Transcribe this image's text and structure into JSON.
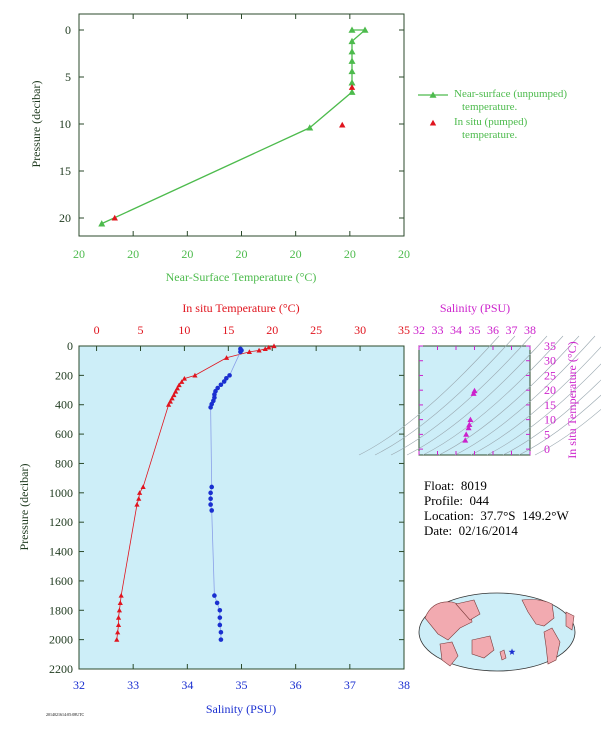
{
  "colors": {
    "green": "#4dbb4d",
    "red": "#e0141e",
    "blue": "#1a2fd0",
    "magenta": "#cc22cc",
    "axis_dark": "#1f3a1f",
    "plot_bg": "#cdeef8",
    "land": "#f2aab0",
    "ocean": "#cdeef8"
  },
  "info": {
    "float": "Float:  8019",
    "profile": "Profile:  044",
    "location": "Location:  37.7°S  149.2°W",
    "date": "Date:  02/16/2014"
  },
  "footer_code": "2014021614:05:08UTC",
  "map": {
    "marker_icon": "star-icon"
  },
  "chart_data": [
    {
      "type": "scatter",
      "xlabel": "Near-Surface Temperature (°C)",
      "ylabel": "Pressure (decibar)",
      "xticks": [
        "20",
        "20",
        "20",
        "20",
        "20",
        "20",
        "20"
      ],
      "yticks": [
        "0",
        "5",
        "10",
        "15",
        "20"
      ],
      "ylim": [
        0,
        22
      ],
      "legend_position": "right",
      "series": [
        {
          "name": "Near-surface (unpumped) temperature.",
          "marker": "triangle",
          "line": true,
          "points": [
            [
              20.84,
              0.0
            ],
            [
              20.88,
              0.0
            ],
            [
              20.84,
              1.2
            ],
            [
              20.84,
              2.3
            ],
            [
              20.84,
              3.3
            ],
            [
              20.84,
              4.4
            ],
            [
              20.84,
              5.6
            ],
            [
              20.84,
              6.6
            ],
            [
              20.71,
              10.4
            ],
            [
              20.07,
              20.6
            ]
          ]
        },
        {
          "name": "In situ (pumped) temperature.",
          "marker": "triangle",
          "line": false,
          "points": [
            [
              20.84,
              6.1
            ],
            [
              20.81,
              10.1
            ],
            [
              20.11,
              20.0
            ]
          ]
        }
      ]
    },
    {
      "type": "scatter",
      "title": "In situ Temperature (°C)",
      "xlabel": "Salinity (PSU)",
      "ylabel": "Pressure (decibar)",
      "temp_xlim": [
        -2,
        35
      ],
      "temp_xticks": [
        "0",
        "5",
        "10",
        "15",
        "20",
        "25",
        "30",
        "35"
      ],
      "sal_xlim": [
        32,
        38
      ],
      "sal_xticks": [
        "32",
        "33",
        "34",
        "35",
        "36",
        "37",
        "38"
      ],
      "ylim": [
        0,
        2200
      ],
      "yticks": [
        "0",
        "200",
        "400",
        "600",
        "800",
        "1000",
        "1200",
        "1400",
        "1600",
        "1800",
        "2000",
        "2200"
      ],
      "temperature": [
        [
          20.2,
          0
        ],
        [
          19.6,
          10
        ],
        [
          19.2,
          20
        ],
        [
          18.5,
          30
        ],
        [
          17.4,
          40
        ],
        [
          14.8,
          80
        ],
        [
          11.2,
          200
        ],
        [
          10.0,
          222
        ],
        [
          9.7,
          244
        ],
        [
          9.4,
          266
        ],
        [
          9.2,
          288
        ],
        [
          9.0,
          310
        ],
        [
          8.8,
          334
        ],
        [
          8.6,
          356
        ],
        [
          8.4,
          378
        ],
        [
          8.2,
          400
        ],
        [
          5.3,
          960
        ],
        [
          4.9,
          1000
        ],
        [
          4.8,
          1040
        ],
        [
          4.6,
          1080
        ],
        [
          2.8,
          1700
        ],
        [
          2.7,
          1750
        ],
        [
          2.6,
          1800
        ],
        [
          2.5,
          1850
        ],
        [
          2.5,
          1900
        ],
        [
          2.4,
          1950
        ],
        [
          2.3,
          2000
        ]
      ],
      "salinity": [
        [
          34.98,
          20
        ],
        [
          35.0,
          30
        ],
        [
          34.98,
          40
        ],
        [
          34.78,
          200
        ],
        [
          34.72,
          220
        ],
        [
          34.68,
          242
        ],
        [
          34.62,
          264
        ],
        [
          34.56,
          286
        ],
        [
          34.52,
          308
        ],
        [
          34.5,
          330
        ],
        [
          34.5,
          352
        ],
        [
          34.48,
          374
        ],
        [
          34.45,
          396
        ],
        [
          34.43,
          418
        ],
        [
          34.45,
          960
        ],
        [
          34.43,
          1000
        ],
        [
          34.43,
          1040
        ],
        [
          34.43,
          1080
        ],
        [
          34.45,
          1120
        ],
        [
          34.5,
          1700
        ],
        [
          34.55,
          1750
        ],
        [
          34.6,
          1800
        ],
        [
          34.6,
          1850
        ],
        [
          34.6,
          1900
        ],
        [
          34.62,
          1950
        ],
        [
          34.62,
          2000
        ]
      ]
    },
    {
      "type": "scatter",
      "title": "Salinity (PSU)",
      "ylabel": "In situ Temperature (°C)",
      "xticks": [
        "32",
        "33",
        "34",
        "35",
        "36",
        "37",
        "38"
      ],
      "yticks": [
        "0",
        "5",
        "10",
        "15",
        "20",
        "25",
        "30",
        "35"
      ],
      "xlim": [
        32,
        38
      ],
      "ylim": [
        -2,
        35
      ],
      "points": [
        [
          35.0,
          19.8
        ],
        [
          34.95,
          18.9
        ],
        [
          34.78,
          10.0
        ],
        [
          34.72,
          8.3
        ],
        [
          34.68,
          7.2
        ],
        [
          34.55,
          5.0
        ],
        [
          34.5,
          3.0
        ]
      ]
    }
  ]
}
